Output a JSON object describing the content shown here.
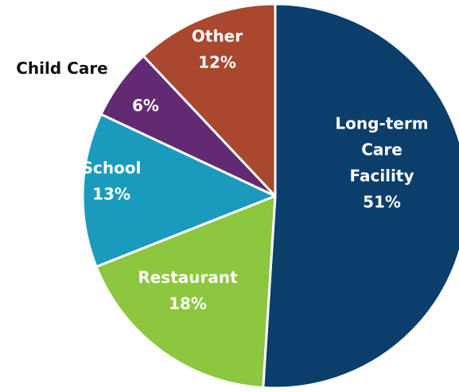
{
  "chart_data": {
    "type": "pie",
    "title": "",
    "start_angle_deg": 0,
    "direction": "clockwise",
    "slices": [
      {
        "label_lines": [
          "Long-term",
          "Care",
          "Facility"
        ],
        "value": 51,
        "value_text": "51%",
        "color": "#0b3e6b",
        "text_color": "#ffffff"
      },
      {
        "label_lines": [
          "Restaurant"
        ],
        "value": 18,
        "value_text": "18%",
        "color": "#8dc63f",
        "text_color": "#ffffff"
      },
      {
        "label_lines": [
          "School"
        ],
        "value": 13,
        "value_text": "13%",
        "color": "#1a9bbd",
        "text_color": "#ffffff"
      },
      {
        "label_lines": [
          "Child Care"
        ],
        "value": 6,
        "value_text": "6%",
        "color": "#612a73",
        "text_color": "#ffffff",
        "label_outside": true,
        "outside_text_color": "#111111"
      },
      {
        "label_lines": [
          "Other"
        ],
        "value": 12,
        "value_text": "12%",
        "color": "#a9472f",
        "text_color": "#ffffff"
      }
    ]
  }
}
